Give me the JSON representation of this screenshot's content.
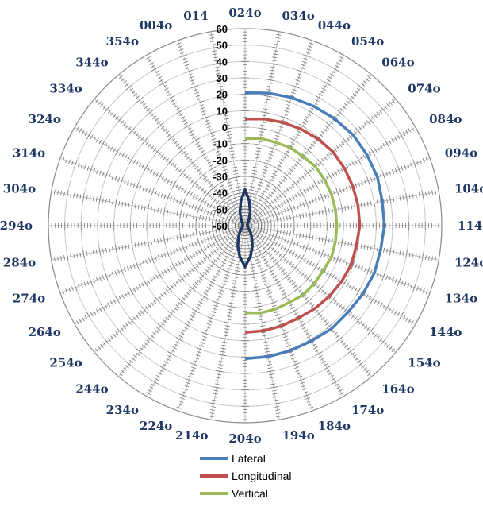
{
  "chart_data": {
    "type": "polar-line",
    "angle_labels": [
      "024o",
      "034o",
      "044o",
      "054o",
      "064o",
      "074o",
      "084o",
      "094o",
      "104o",
      "114o",
      "124o",
      "134o",
      "144o",
      "154o",
      "164o",
      "174o",
      "184o",
      "194o",
      "204o",
      "214o",
      "224o",
      "234o",
      "244o",
      "254o",
      "264o",
      "274o",
      "284o",
      "294o",
      "304o",
      "314o",
      "324o",
      "334o",
      "344o",
      "354o",
      "004o",
      "014"
    ],
    "radial_ticks": [
      "60",
      "50",
      "40",
      "30",
      "20",
      "10",
      "0",
      "-10",
      "-20",
      "-30",
      "-40",
      "-50",
      "-60"
    ],
    "rlim": [
      -60,
      60
    ],
    "grid": true,
    "legend_position": "bottom",
    "series": [
      {
        "name": "Lateral",
        "color": "#4a7ebb",
        "closed": false,
        "angles": [
          24,
          34,
          44,
          54,
          64,
          74,
          84,
          94,
          104,
          114,
          124,
          134,
          144,
          154,
          164,
          174,
          184,
          194,
          204
        ],
        "values": [
          21,
          22,
          23,
          24,
          25,
          26,
          26,
          26,
          25,
          25,
          24,
          24,
          23,
          22,
          22,
          21,
          21,
          21,
          21
        ]
      },
      {
        "name": "Longitudinal",
        "color": "#c0504d",
        "closed": false,
        "angles": [
          24,
          34,
          44,
          54,
          64,
          74,
          84,
          94,
          104,
          114,
          124,
          134,
          144,
          154,
          164,
          174,
          184,
          194,
          204
        ],
        "values": [
          5,
          6,
          7,
          8,
          9,
          10,
          10,
          10,
          10,
          10,
          9,
          9,
          8,
          7,
          6,
          5,
          5,
          5,
          5
        ]
      },
      {
        "name": "Vertical",
        "color": "#9bbb59",
        "closed": false,
        "angles": [
          24,
          34,
          44,
          54,
          64,
          74,
          84,
          94,
          104,
          114,
          124,
          134,
          144,
          154,
          164,
          174,
          184,
          194,
          204
        ],
        "values": [
          -7,
          -6,
          -6,
          -5,
          -5,
          -4,
          -4,
          -4,
          -4,
          -4,
          -4,
          -4,
          -5,
          -5,
          -5,
          -6,
          -6,
          -6,
          -7
        ]
      },
      {
        "name": "",
        "color": "#1f3864",
        "closed": true,
        "angles": [
          24,
          34,
          44,
          54,
          64,
          74,
          84,
          94,
          104,
          114,
          124,
          134,
          144,
          154,
          164,
          174,
          184,
          194,
          204,
          214,
          224,
          234,
          244,
          254,
          264,
          274,
          284,
          294,
          304,
          314,
          324,
          334,
          344,
          354,
          4,
          14
        ],
        "values": [
          -38,
          -45,
          -51,
          -55,
          -57,
          -58,
          -58.5,
          -58.5,
          -58.5,
          -58.5,
          -58.5,
          -58.5,
          -58,
          -57,
          -55,
          -52,
          -47,
          -41,
          -35,
          -41,
          -47,
          -52,
          -55,
          -57,
          -58,
          -58.5,
          -58.5,
          -58.5,
          -58.5,
          -58.5,
          -58.5,
          -58,
          -57,
          -55,
          -51,
          -45
        ]
      }
    ]
  }
}
